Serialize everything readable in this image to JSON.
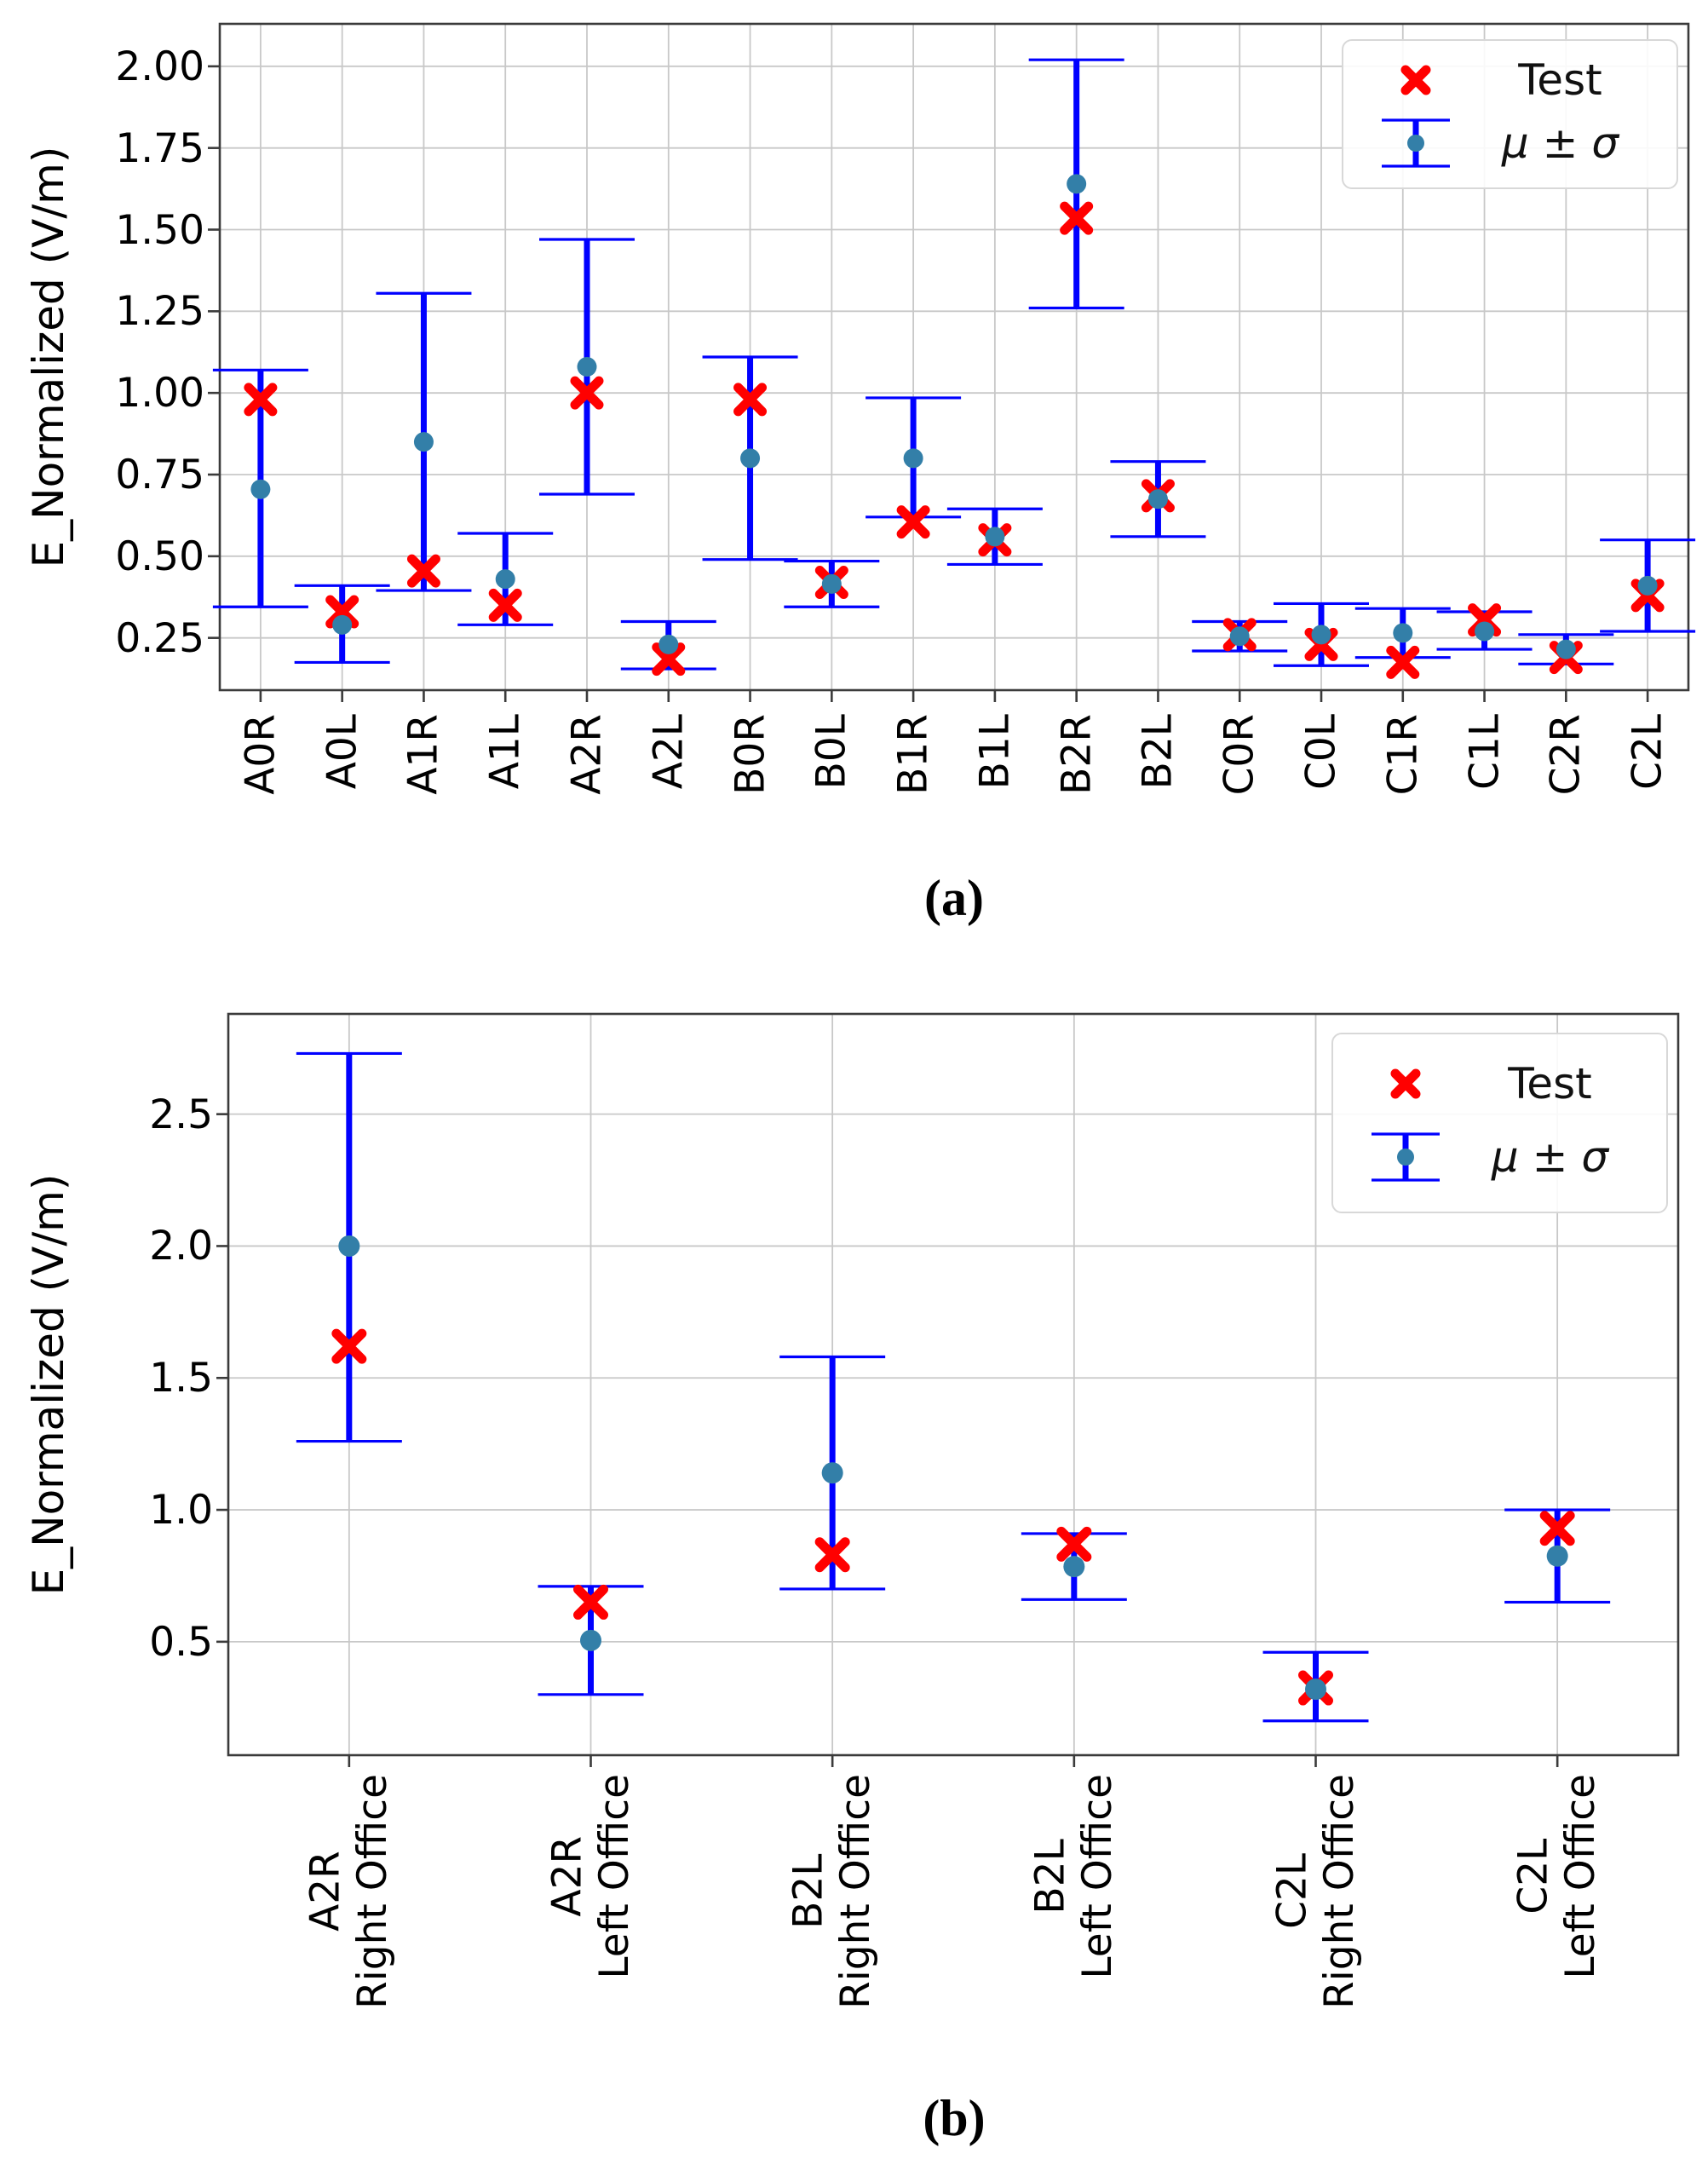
{
  "colors": {
    "error_bar": "#0000ff",
    "mean_dot": "#337fa8",
    "test_marker": "#ff0000",
    "grid": "#c8c8c8",
    "spine": "#3b3b3b",
    "text": "#000000",
    "legend_border": "#d8d8d8"
  },
  "chart_data": [
    {
      "id": "a",
      "type": "scatter",
      "subtype": "errorbar",
      "caption": "(a)",
      "title": "",
      "xlabel": "",
      "ylabel": "E_Normalized (V/m)",
      "grid": true,
      "legend": {
        "position": "upper right",
        "test_label": "Test",
        "mu_label": "μ ± σ"
      },
      "ylim": [
        0.09,
        2.13
      ],
      "yticks": [
        {
          "value": 0.25,
          "label": "0.25"
        },
        {
          "value": 0.5,
          "label": "0.50"
        },
        {
          "value": 0.75,
          "label": "0.75"
        },
        {
          "value": 1.0,
          "label": "1.00"
        },
        {
          "value": 1.25,
          "label": "1.25"
        },
        {
          "value": 1.5,
          "label": "1.50"
        },
        {
          "value": 1.75,
          "label": "1.75"
        },
        {
          "value": 2.0,
          "label": "2.00"
        }
      ],
      "points": [
        {
          "category": "A0R",
          "mu": 0.705,
          "lo": 0.345,
          "hi": 1.07,
          "test": 0.98
        },
        {
          "category": "A0L",
          "mu": 0.29,
          "lo": 0.175,
          "hi": 0.41,
          "test": 0.33
        },
        {
          "category": "A1R",
          "mu": 0.85,
          "lo": 0.395,
          "hi": 1.305,
          "test": 0.455
        },
        {
          "category": "A1L",
          "mu": 0.43,
          "lo": 0.29,
          "hi": 0.57,
          "test": 0.35
        },
        {
          "category": "A2R",
          "mu": 1.08,
          "lo": 0.69,
          "hi": 1.47,
          "test": 1.0
        },
        {
          "category": "A2L",
          "mu": 0.23,
          "lo": 0.155,
          "hi": 0.3,
          "test": 0.185
        },
        {
          "category": "B0R",
          "mu": 0.8,
          "lo": 0.49,
          "hi": 1.11,
          "test": 0.98
        },
        {
          "category": "B0L",
          "mu": 0.415,
          "lo": 0.345,
          "hi": 0.485,
          "test": 0.42
        },
        {
          "category": "B1R",
          "mu": 0.8,
          "lo": 0.62,
          "hi": 0.985,
          "test": 0.605
        },
        {
          "category": "B1L",
          "mu": 0.56,
          "lo": 0.475,
          "hi": 0.645,
          "test": 0.55
        },
        {
          "category": "B2R",
          "mu": 1.64,
          "lo": 1.26,
          "hi": 2.02,
          "test": 1.535
        },
        {
          "category": "B2L",
          "mu": 0.675,
          "lo": 0.56,
          "hi": 0.79,
          "test": 0.685
        },
        {
          "category": "C0R",
          "mu": 0.255,
          "lo": 0.21,
          "hi": 0.3,
          "test": 0.26
        },
        {
          "category": "C0L",
          "mu": 0.26,
          "lo": 0.165,
          "hi": 0.355,
          "test": 0.23
        },
        {
          "category": "C1R",
          "mu": 0.265,
          "lo": 0.19,
          "hi": 0.34,
          "test": 0.175
        },
        {
          "category": "C1L",
          "mu": 0.27,
          "lo": 0.215,
          "hi": 0.33,
          "test": 0.305
        },
        {
          "category": "C2R",
          "mu": 0.215,
          "lo": 0.17,
          "hi": 0.26,
          "test": 0.19
        },
        {
          "category": "C2L",
          "mu": 0.41,
          "lo": 0.27,
          "hi": 0.55,
          "test": 0.38
        }
      ]
    },
    {
      "id": "b",
      "type": "scatter",
      "subtype": "errorbar",
      "caption": "(b)",
      "title": "",
      "xlabel": "",
      "ylabel": "E_Normalized (V/m)",
      "grid": true,
      "legend": {
        "position": "upper right",
        "test_label": "Test",
        "mu_label": "μ ± σ"
      },
      "ylim": [
        0.07,
        2.88
      ],
      "yticks": [
        {
          "value": 0.5,
          "label": "0.5"
        },
        {
          "value": 1.0,
          "label": "1.0"
        },
        {
          "value": 1.5,
          "label": "1.5"
        },
        {
          "value": 2.0,
          "label": "2.0"
        },
        {
          "value": 2.5,
          "label": "2.5"
        }
      ],
      "points": [
        {
          "category": "A2R\nRight Office",
          "mu": 2.0,
          "lo": 1.26,
          "hi": 2.73,
          "test": 1.62
        },
        {
          "category": "A2R\nLeft Office",
          "mu": 0.505,
          "lo": 0.3,
          "hi": 0.71,
          "test": 0.65
        },
        {
          "category": "B2L\nRight Office",
          "mu": 1.14,
          "lo": 0.7,
          "hi": 1.58,
          "test": 0.83
        },
        {
          "category": "B2L\nLeft Office",
          "mu": 0.785,
          "lo": 0.66,
          "hi": 0.91,
          "test": 0.87
        },
        {
          "category": "C2L\nRight Office",
          "mu": 0.32,
          "lo": 0.2,
          "hi": 0.46,
          "test": 0.325
        },
        {
          "category": "C2L\nLeft Office",
          "mu": 0.825,
          "lo": 0.65,
          "hi": 1.0,
          "test": 0.93
        }
      ]
    }
  ]
}
